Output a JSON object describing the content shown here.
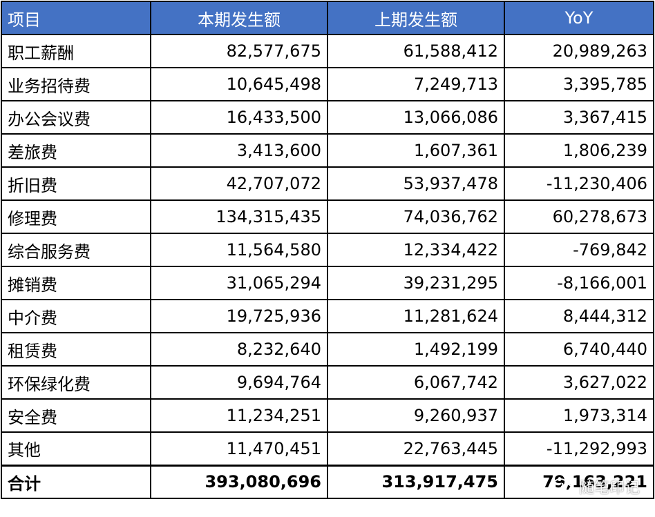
{
  "table": {
    "headers": [
      "项目",
      "本期发生额",
      "上期发生额",
      "YoY"
    ],
    "rows": [
      [
        "职工薪酬",
        "82,577,675",
        "61,588,412",
        "20,989,263"
      ],
      [
        "业务招待费",
        "10,645,498",
        "7,249,713",
        "3,395,785"
      ],
      [
        "办公会议费",
        "16,433,500",
        "13,066,086",
        "3,367,415"
      ],
      [
        "差旅费",
        "3,413,600",
        "1,607,361",
        "1,806,239"
      ],
      [
        "折旧费",
        "42,707,072",
        "53,937,478",
        "-11,230,406"
      ],
      [
        "修理费",
        "134,315,435",
        "74,036,762",
        "60,278,673"
      ],
      [
        "综合服务费",
        "11,564,580",
        "12,334,422",
        "-769,842"
      ],
      [
        "摊销费",
        "31,065,294",
        "39,231,295",
        "-8,166,001"
      ],
      [
        "中介费",
        "19,725,936",
        "11,281,624",
        "8,444,312"
      ],
      [
        "租赁费",
        "8,232,640",
        "1,492,199",
        "6,740,440"
      ],
      [
        "环保绿化费",
        "9,694,764",
        "6,067,742",
        "3,627,022"
      ],
      [
        "安全费",
        "11,234,251",
        "9,260,937",
        "1,973,314"
      ],
      [
        "其他",
        "11,470,451",
        "22,763,445",
        "-11,292,993"
      ]
    ],
    "total": [
      "合计",
      "393,080,696",
      "313,917,475",
      "79,163,221"
    ]
  },
  "header_color": "#4472c4",
  "watermark": {
    "text": "随笔印记",
    "icon": "wechat-icon"
  }
}
